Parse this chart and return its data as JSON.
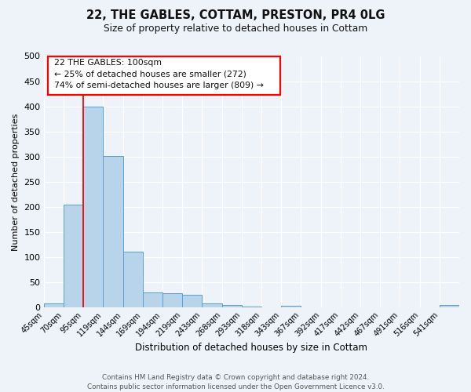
{
  "title_line1": "22, THE GABLES, COTTAM, PRESTON, PR4 0LG",
  "title_line2": "Size of property relative to detached houses in Cottam",
  "xlabel": "Distribution of detached houses by size in Cottam",
  "ylabel": "Number of detached properties",
  "bar_color": "#b8d4ea",
  "bar_edge_color": "#5a9fd4",
  "bin_labels": [
    "45sqm",
    "70sqm",
    "95sqm",
    "119sqm",
    "144sqm",
    "169sqm",
    "194sqm",
    "219sqm",
    "243sqm",
    "268sqm",
    "293sqm",
    "318sqm",
    "343sqm",
    "367sqm",
    "392sqm",
    "417sqm",
    "442sqm",
    "467sqm",
    "491sqm",
    "516sqm",
    "541sqm"
  ],
  "bar_values": [
    8,
    205,
    400,
    302,
    112,
    30,
    28,
    25,
    8,
    6,
    3,
    1,
    4,
    1,
    1,
    0,
    0,
    0,
    0,
    0,
    5
  ],
  "ylim": [
    0,
    500
  ],
  "yticks": [
    0,
    50,
    100,
    150,
    200,
    250,
    300,
    350,
    400,
    450,
    500
  ],
  "red_line_index": 2,
  "annotation_text": "22 THE GABLES: 100sqm\n← 25% of detached houses are smaller (272)\n74% of semi-detached houses are larger (809) →",
  "footer_line1": "Contains HM Land Registry data © Crown copyright and database right 2024.",
  "footer_line2": "Contains public sector information licensed under the Open Government Licence v3.0.",
  "background_color": "#eef3f9",
  "grid_color": "#ffffff"
}
